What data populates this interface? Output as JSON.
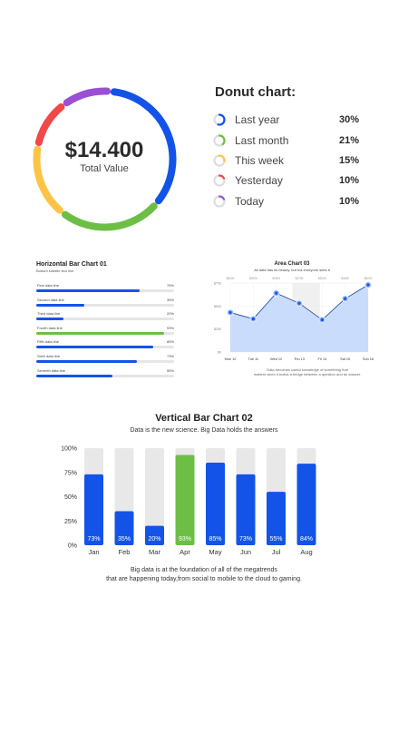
{
  "chart_data": [
    {
      "type": "pie",
      "title": "Donut chart:",
      "center_value": "$14.400",
      "center_label": "Total Value",
      "slices": [
        {
          "label": "Last year",
          "value": 30,
          "value_label": "30%",
          "color": "#1353e8"
        },
        {
          "label": "Last month",
          "value": 21,
          "value_label": "21%",
          "color": "#6dbe45"
        },
        {
          "label": "This week",
          "value": 15,
          "value_label": "15%",
          "color": "#fcc447"
        },
        {
          "label": "Yesterday",
          "value": 10,
          "value_label": "10%",
          "color": "#f24848"
        },
        {
          "label": "Today",
          "value": 10,
          "value_label": "10%",
          "color": "#9a4fd4"
        }
      ]
    },
    {
      "type": "bar",
      "orientation": "horizontal",
      "title": "Horizontal Bar Chart 01",
      "subtitle": "Bottom subtitle text line",
      "xlim": [
        0,
        100
      ],
      "bars": [
        {
          "label": "First data line",
          "value": 75,
          "value_label": "75%",
          "color": "#1353e8"
        },
        {
          "label": "Second data line",
          "value": 35,
          "value_label": "35%",
          "color": "#1353e8"
        },
        {
          "label": "Third data line",
          "value": 20,
          "value_label": "20%",
          "color": "#1353e8"
        },
        {
          "label": "Fourth data line",
          "value": 93,
          "value_label": "93%",
          "color": "#6dbe45"
        },
        {
          "label": "Fifth data line",
          "value": 85,
          "value_label": "85%",
          "color": "#1353e8"
        },
        {
          "label": "Sixth data line",
          "value": 73,
          "value_label": "73%",
          "color": "#1353e8"
        },
        {
          "label": "Seventh data line",
          "value": 55,
          "value_label": "55%",
          "color": "#1353e8"
        }
      ]
    },
    {
      "type": "area",
      "title": "Area Chart 03",
      "subtitle": "All data has its beauty, but not everyone sees it",
      "caption_lines": [
        "Data becomes useful knowledge of something that",
        "matters when it builds a bridge between a question and an answer."
      ],
      "categories": [
        "Mon 10",
        "Tue 11",
        "Wed 12",
        "Thu 13",
        "Fri 14",
        "Sat 15",
        "Sun 16"
      ],
      "top_labels": [
        "$5000",
        "$2000",
        "$4000",
        "$3750",
        "$3200",
        "$3000",
        "$5000"
      ],
      "y_ticks": [
        "$0",
        "$250",
        "$500",
        "$750"
      ],
      "ylim": [
        0,
        750
      ],
      "values": [
        430,
        360,
        640,
        530,
        350,
        580,
        730
      ],
      "highlight_category": "Fri 14",
      "color": "#1353e8"
    },
    {
      "type": "bar",
      "orientation": "vertical",
      "title": "Vertical Bar Chart 02",
      "subtitle": "Data is the new science. Big Data holds the answers",
      "caption_lines": [
        "Big data is at the foundation of all of the megatrends",
        "that are happening today,from social to mobile to the cloud to gaming."
      ],
      "categories": [
        "Jan",
        "Feb",
        "Mar",
        "Apr",
        "May",
        "Jun",
        "Jul",
        "Aug"
      ],
      "values": [
        73,
        35,
        20,
        93,
        85,
        73,
        55,
        84
      ],
      "value_labels": [
        "73%",
        "35%",
        "20%",
        "93%",
        "85%",
        "73%",
        "55%",
        "84%"
      ],
      "highlight_index": 3,
      "y_ticks": [
        "0%",
        "25%",
        "50%",
        "75%",
        "100%"
      ],
      "ylim": [
        0,
        100
      ],
      "colors": {
        "bar": "#1353e8",
        "highlight": "#6dbe45",
        "track": "#e8e8e8"
      }
    }
  ]
}
